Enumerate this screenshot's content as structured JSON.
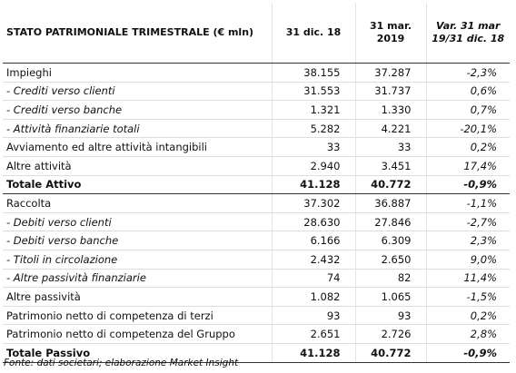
{
  "table": {
    "header": [
      "STATO PATRIMONIALE TRIMESTRALE (€ mln)",
      "31 dic. 18",
      "31 mar. 2019",
      "Var. 31 mar 19/31 dic. 18"
    ],
    "rows": [
      [
        "Impieghi",
        "38.155",
        "37.287",
        "-2,3%"
      ],
      [
        "- Crediti verso clienti",
        "31.553",
        "31.737",
        "0,6%"
      ],
      [
        "- Crediti verso banche",
        "1.321",
        "1.330",
        "0,7%"
      ],
      [
        "- Attività finanziarie totali",
        "5.282",
        "4.221",
        "-20,1%"
      ],
      [
        "Avviamento ed altre attività intangibili",
        "33",
        "33",
        "0,2%"
      ],
      [
        "Altre attività",
        "2.940",
        "3.451",
        "17,4%"
      ],
      [
        "Totale Attivo",
        "41.128",
        "40.772",
        "-0,9%"
      ],
      [
        "Raccolta",
        "37.302",
        "36.887",
        "-1,1%"
      ],
      [
        "- Debiti verso clienti",
        "28.630",
        "27.846",
        "-2,7%"
      ],
      [
        "- Debiti verso banche",
        "6.166",
        "6.309",
        "2,3%"
      ],
      [
        "- Titoli in circolazione",
        "2.432",
        "2.650",
        "9,0%"
      ],
      [
        "- Altre passività finanziarie",
        "74",
        "82",
        "11,4%"
      ],
      [
        "Altre passività",
        "1.082",
        "1.065",
        "-1,5%"
      ],
      [
        "Patrimonio netto di competenza di terzi",
        "93",
        "93",
        "0,2%"
      ],
      [
        "Patrimonio netto di competenza del Gruppo",
        "2.651",
        "2.726",
        "2,8%"
      ],
      [
        "Totale Passivo",
        "41.128",
        "40.772",
        "-0,9%"
      ]
    ]
  },
  "footer": {
    "source": "Fonte: dati societari; elaborazione Market Insight"
  }
}
